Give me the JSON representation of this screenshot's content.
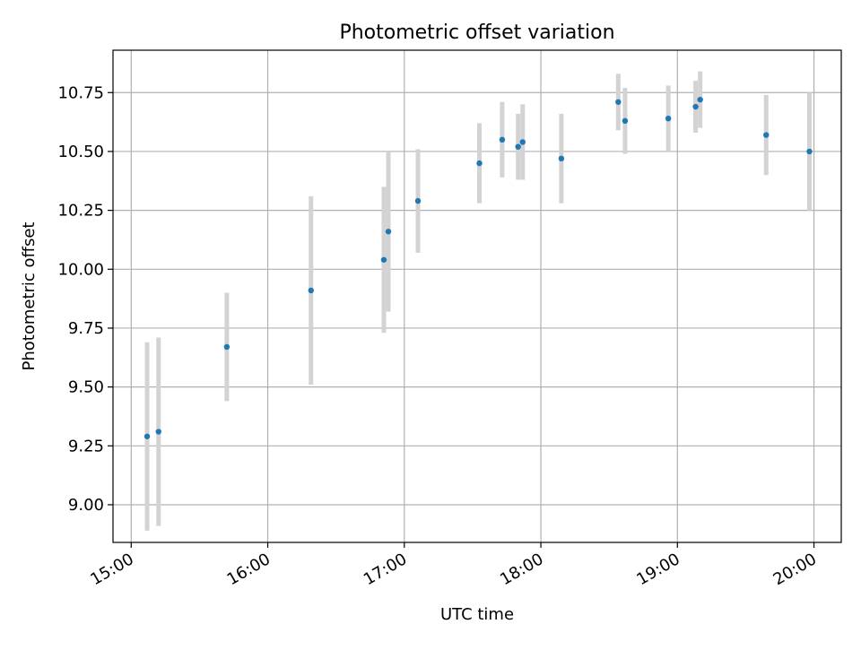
{
  "chart_data": {
    "type": "scatter",
    "title": "Photometric offset variation",
    "xlabel": "UTC time",
    "ylabel": "Photometric offset",
    "x_axis_type": "time",
    "xlim": [
      "14:52",
      "20:12"
    ],
    "ylim": [
      8.84,
      10.93
    ],
    "x_ticks": [
      "15:00",
      "16:00",
      "17:00",
      "18:00",
      "19:00",
      "20:00"
    ],
    "y_ticks": [
      9.0,
      9.25,
      9.5,
      9.75,
      10.0,
      10.25,
      10.5,
      10.75
    ],
    "y_tick_labels": [
      "9.00",
      "9.25",
      "9.50",
      "9.75",
      "10.00",
      "10.25",
      "10.50",
      "10.75"
    ],
    "grid": true,
    "marker_color": "#1f77b4",
    "errorbar_color": "#d3d3d3",
    "points": [
      {
        "time": "15:07",
        "y": 9.29,
        "yerr": 0.4
      },
      {
        "time": "15:12",
        "y": 9.31,
        "yerr": 0.4
      },
      {
        "time": "15:42",
        "y": 9.67,
        "yerr": 0.23
      },
      {
        "time": "16:19",
        "y": 9.91,
        "yerr": 0.4
      },
      {
        "time": "16:51",
        "y": 10.04,
        "yerr": 0.31
      },
      {
        "time": "16:53",
        "y": 10.16,
        "yerr": 0.34
      },
      {
        "time": "17:06",
        "y": 10.29,
        "yerr": 0.22
      },
      {
        "time": "17:33",
        "y": 10.45,
        "yerr": 0.17
      },
      {
        "time": "17:43",
        "y": 10.55,
        "yerr": 0.16
      },
      {
        "time": "17:50",
        "y": 10.52,
        "yerr": 0.14
      },
      {
        "time": "17:52",
        "y": 10.54,
        "yerr": 0.16
      },
      {
        "time": "18:09",
        "y": 10.47,
        "yerr": 0.19
      },
      {
        "time": "18:34",
        "y": 10.71,
        "yerr": 0.12
      },
      {
        "time": "18:37",
        "y": 10.63,
        "yerr": 0.14
      },
      {
        "time": "18:56",
        "y": 10.64,
        "yerr": 0.14
      },
      {
        "time": "19:08",
        "y": 10.69,
        "yerr": 0.11
      },
      {
        "time": "19:10",
        "y": 10.72,
        "yerr": 0.12
      },
      {
        "time": "19:39",
        "y": 10.57,
        "yerr": 0.17
      },
      {
        "time": "19:58",
        "y": 10.5,
        "yerr": 0.25
      }
    ]
  }
}
